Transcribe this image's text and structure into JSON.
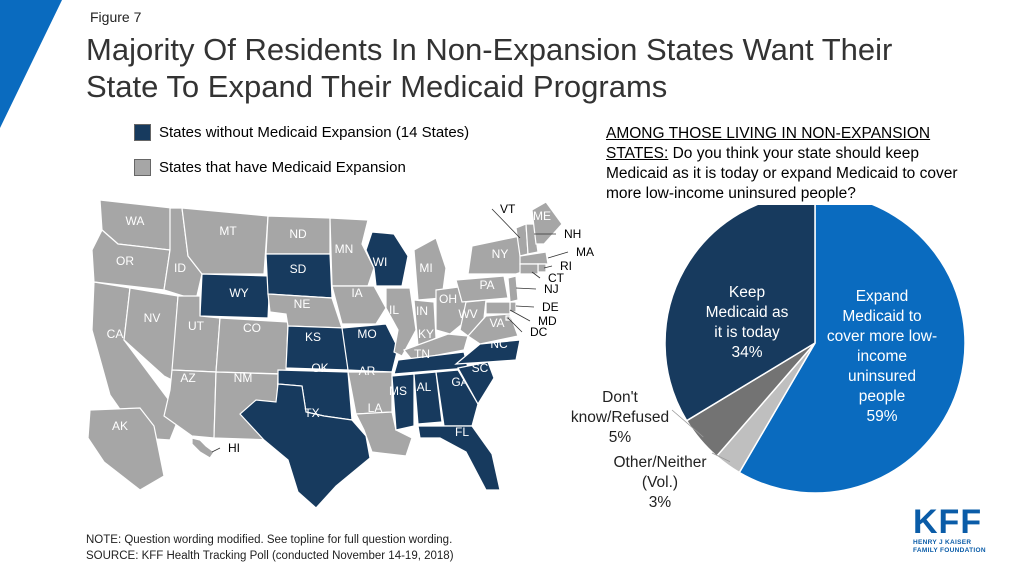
{
  "header": {
    "figure_label": "Figure 7",
    "title_line1": "Majority Of Residents In Non-Expansion States Want Their",
    "title_line2": "State To Expand Their Medicaid Programs"
  },
  "colors": {
    "non_expansion": "#173a5e",
    "expansion": "#a6a6a6",
    "expand_slice": "#0a6bbf",
    "dont_know_slice": "#737373",
    "other_slice": "#bfbfbf",
    "accent": "#0a6bbf"
  },
  "legend": [
    {
      "label": "States without Medicaid Expansion (14 States)",
      "color": "#173a5e"
    },
    {
      "label": "States that have Medicaid Expansion",
      "color": "#a6a6a6"
    }
  ],
  "map": {
    "non_expansion_states": [
      "WY",
      "SD",
      "WI",
      "KS",
      "MO",
      "TX",
      "OK",
      "TN",
      "MS",
      "AL",
      "GA",
      "SC",
      "NC",
      "FL"
    ],
    "expansion_states": [
      "WA",
      "OR",
      "CA",
      "NV",
      "ID",
      "MT",
      "UT",
      "AZ",
      "CO",
      "NM",
      "ND",
      "NE",
      "MN",
      "IA",
      "AR",
      "LA",
      "IL",
      "MI",
      "IN",
      "OH",
      "KY",
      "WV",
      "VA",
      "PA",
      "NY",
      "VT",
      "ME",
      "NH",
      "MA",
      "RI",
      "CT",
      "NJ",
      "DE",
      "MD",
      "DC",
      "AK",
      "HI"
    ]
  },
  "question": {
    "lead": "AMONG THOSE LIVING IN NON-EXPANSION STATES:",
    "text": "Do you think your state should keep Medicaid as it is today or expand Medicaid to cover more low-income uninsured people?"
  },
  "chart_data": {
    "type": "pie",
    "slices": [
      {
        "label_lines": [
          "Expand",
          "Medicaid to",
          "cover more low-",
          "income",
          "uninsured",
          "people"
        ],
        "value": 59,
        "value_label": "59%",
        "color": "#0a6bbf"
      },
      {
        "label_lines": [
          "Other/Neither",
          "(Vol.)"
        ],
        "value": 3,
        "value_label": "3%",
        "color": "#bfbfbf"
      },
      {
        "label_lines": [
          "Don't",
          "know/Refused"
        ],
        "value": 5,
        "value_label": "5%",
        "color": "#737373"
      },
      {
        "label_lines": [
          "Keep",
          "Medicaid as",
          "it is today"
        ],
        "value": 34,
        "value_label": "34%",
        "color": "#173a5e"
      }
    ]
  },
  "footer": {
    "note": "NOTE: Question wording modified. See topline for full question wording.",
    "source": "SOURCE: KFF Health Tracking Poll (conducted November 14-19, 2018)"
  },
  "logo": {
    "main": "KFF",
    "sub_line1": "HENRY J KAISER",
    "sub_line2": "FAMILY FOUNDATION"
  }
}
